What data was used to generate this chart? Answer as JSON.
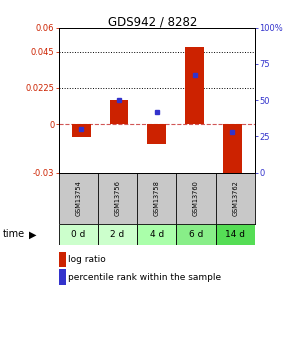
{
  "title": "GDS942 / 8282",
  "samples": [
    "GSM13754",
    "GSM13756",
    "GSM13758",
    "GSM13760",
    "GSM13762"
  ],
  "time_labels": [
    "0 d",
    "2 d",
    "4 d",
    "6 d",
    "14 d"
  ],
  "log_ratios": [
    -0.008,
    0.015,
    -0.012,
    0.048,
    -0.033
  ],
  "percentile_ranks": [
    30,
    50,
    42,
    67,
    28
  ],
  "ylim_left": [
    -0.03,
    0.06
  ],
  "ylim_right": [
    0,
    100
  ],
  "yticks_left": [
    -0.03,
    0,
    0.0225,
    0.045,
    0.06
  ],
  "ytick_labels_left": [
    "-0.03",
    "0",
    "0.0225",
    "0.045",
    "0.06"
  ],
  "yticks_right": [
    0,
    25,
    50,
    75,
    100
  ],
  "ytick_labels_right": [
    "0",
    "25",
    "50",
    "75",
    "100%"
  ],
  "hlines": [
    0.045,
    0.0225
  ],
  "bar_color": "#cc2200",
  "dot_color": "#3333cc",
  "zero_line_color": "#cc4444",
  "bg_color": "#ffffff",
  "plot_bg": "#ffffff",
  "grid_color": "#000000",
  "left_tick_color": "#cc2200",
  "right_tick_color": "#3333cc",
  "sample_bg": "#c8c8c8",
  "time_bg_colors": [
    "#ccffcc",
    "#ccffcc",
    "#aaffaa",
    "#88ee88",
    "#55dd55"
  ],
  "legend_bar_color": "#cc2200",
  "legend_dot_color": "#3333cc",
  "bar_width": 0.5
}
